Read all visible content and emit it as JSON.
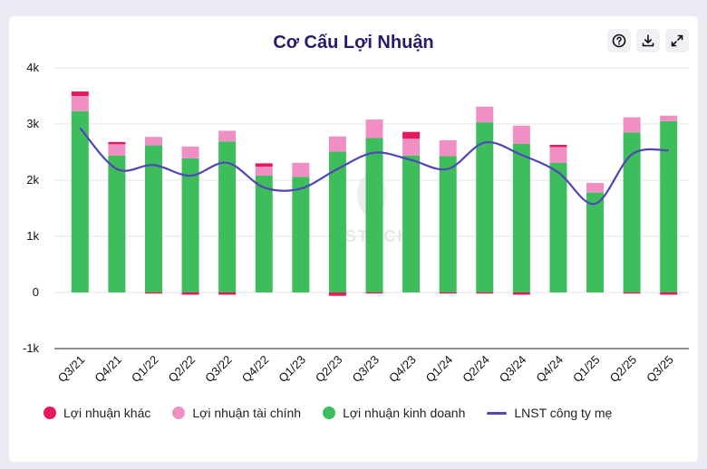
{
  "title": "Cơ Cấu Lợi Nhuận",
  "toolbar": {
    "help_icon": "help-circle-icon",
    "download_icon": "download-icon",
    "expand_icon": "expand-icon"
  },
  "watermark": "ESTOCK",
  "colors": {
    "khac": "#e8185c",
    "taichinh": "#f08fc4",
    "kinhdoanh": "#3dbd5c",
    "lnst": "#5145b8"
  },
  "chart_data": {
    "type": "bar",
    "stacked": true,
    "title": "Cơ Cấu Lợi Nhuận",
    "categories": [
      "Q3/21",
      "Q4/21",
      "Q1/22",
      "Q2/22",
      "Q3/22",
      "Q4/22",
      "Q1/23",
      "Q2/23",
      "Q3/23",
      "Q4/23",
      "Q1/24",
      "Q2/24",
      "Q3/24",
      "Q4/24",
      "Q1/25",
      "Q2/25",
      "Q3/25"
    ],
    "yticks": [
      "-1k",
      "0",
      "1k",
      "2k",
      "3k",
      "4k"
    ],
    "ylim": [
      -1000,
      4000
    ],
    "series": [
      {
        "name": "Lợi nhuận khác",
        "type": "bar",
        "color": "#e8185c",
        "values": [
          80,
          40,
          -20,
          -40,
          -40,
          60,
          0,
          -60,
          -20,
          120,
          -20,
          -20,
          -40,
          40,
          0,
          -20,
          -40
        ]
      },
      {
        "name": "Lợi nhuận tài chính",
        "type": "bar",
        "color": "#f08fc4",
        "values": [
          270,
          200,
          150,
          210,
          190,
          160,
          250,
          270,
          330,
          300,
          280,
          280,
          320,
          280,
          170,
          270,
          100
        ]
      },
      {
        "name": "Lợi nhuận kinh doanh",
        "type": "bar",
        "color": "#3dbd5c",
        "values": [
          3230,
          2440,
          2620,
          2390,
          2690,
          2080,
          2060,
          2510,
          2750,
          2440,
          2430,
          3030,
          2650,
          2310,
          1780,
          2850,
          3050
        ]
      },
      {
        "name": "LNST công ty mẹ",
        "type": "line",
        "color": "#5145b8",
        "values": [
          2930,
          2200,
          2270,
          2080,
          2310,
          1870,
          1850,
          2200,
          2490,
          2360,
          2200,
          2670,
          2450,
          2140,
          1580,
          2460,
          2530
        ]
      }
    ],
    "legend_position": "bottom"
  }
}
